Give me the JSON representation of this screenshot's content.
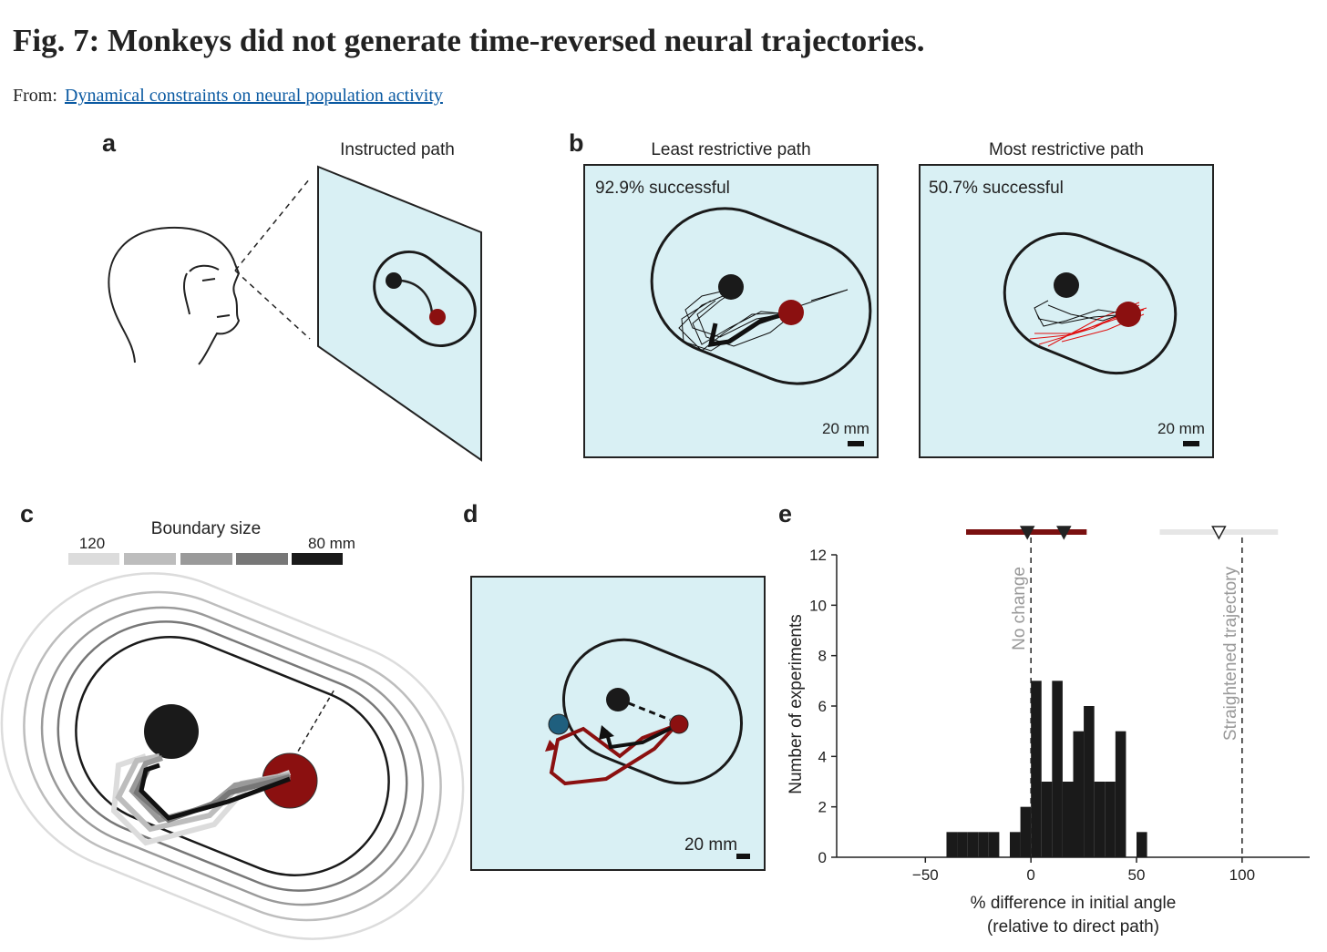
{
  "header": {
    "title": "Fig. 7: Monkeys did not generate time-reversed neural trajectories.",
    "source_prefix": "From:",
    "source_link": "Dynamical constraints on neural population activity"
  },
  "panels": {
    "a": {
      "letter": "a",
      "caption": "Instructed path"
    },
    "b": {
      "letter": "b",
      "left": {
        "caption": "Least restrictive path",
        "success": "92.9% successful",
        "scale": "20 mm"
      },
      "right": {
        "caption": "Most restrictive path",
        "success": "50.7% successful",
        "scale": "20 mm"
      }
    },
    "c": {
      "letter": "c",
      "legend_title": "Boundary size",
      "legend_max": "120",
      "legend_min": "80 mm"
    },
    "d": {
      "letter": "d",
      "scale": "20 mm"
    },
    "e": {
      "letter": "e"
    }
  },
  "chart_data": {
    "type": "histogram",
    "xlabel": [
      "% difference in initial angle",
      "(relative to direct path)"
    ],
    "ylabel": "Number of experiments",
    "bins": [
      -40,
      -35,
      -30,
      -25,
      -20,
      -15,
      -10,
      -5,
      0,
      5,
      10,
      15,
      20,
      25,
      30,
      35,
      40,
      45,
      50,
      55
    ],
    "values": [
      1,
      1,
      1,
      1,
      1,
      0,
      1,
      2,
      7,
      3,
      7,
      3,
      5,
      6,
      3,
      3,
      5,
      0,
      1
    ],
    "color": "#1a1a1a",
    "xlim": [
      -92,
      132
    ],
    "ylim": [
      0,
      12
    ],
    "xticks": [
      {
        "value": -50,
        "label": "−50"
      },
      0,
      50,
      100
    ],
    "yticks": [
      0,
      2,
      4,
      6,
      8,
      10,
      12
    ],
    "reference_lines": [
      {
        "value": 0,
        "label": "No change"
      },
      {
        "value": 100,
        "label": "Straightened trajectory"
      }
    ],
    "ranges": [
      {
        "low": -30.7,
        "high": 26.4,
        "color": "#7a1010",
        "markers": [
          -1.7,
          15.6
        ],
        "filled": true
      },
      {
        "low": 61,
        "high": 117,
        "color": "#e6e6e6",
        "markers": [
          89
        ],
        "filled": false
      }
    ]
  }
}
